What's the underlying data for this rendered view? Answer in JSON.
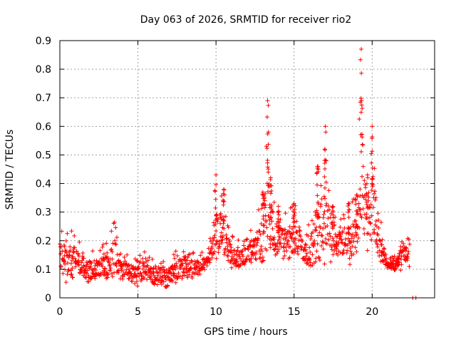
{
  "chart_data": {
    "type": "scatter",
    "title": "Day 063 of 2026, SRMTID for receiver rio2",
    "xlabel": "GPS time / hours",
    "ylabel": "SRMTID / TECUs",
    "xlim": [
      0,
      24
    ],
    "ylim": [
      0,
      0.9
    ],
    "xticks": [
      0,
      5,
      10,
      15,
      20
    ],
    "yticks": [
      0,
      0.1,
      0.2,
      0.3,
      0.4,
      0.5,
      0.6,
      0.7,
      0.8,
      0.9
    ],
    "grid": true,
    "marker": "+",
    "series_color": "#ff0000",
    "envelope": [
      [
        0.0,
        0.06,
        0.28
      ],
      [
        0.5,
        0.05,
        0.25
      ],
      [
        1.0,
        0.07,
        0.23
      ],
      [
        1.5,
        0.06,
        0.18
      ],
      [
        2.0,
        0.05,
        0.17
      ],
      [
        2.5,
        0.06,
        0.18
      ],
      [
        3.0,
        0.05,
        0.2
      ],
      [
        3.5,
        0.06,
        0.28
      ],
      [
        4.0,
        0.06,
        0.16
      ],
      [
        4.5,
        0.05,
        0.15
      ],
      [
        5.0,
        0.04,
        0.14
      ],
      [
        5.5,
        0.05,
        0.19
      ],
      [
        6.0,
        0.04,
        0.14
      ],
      [
        6.5,
        0.03,
        0.15
      ],
      [
        7.0,
        0.04,
        0.14
      ],
      [
        7.5,
        0.05,
        0.17
      ],
      [
        8.0,
        0.05,
        0.2
      ],
      [
        8.5,
        0.07,
        0.16
      ],
      [
        9.0,
        0.08,
        0.16
      ],
      [
        9.5,
        0.09,
        0.17
      ],
      [
        10.0,
        0.1,
        0.43
      ],
      [
        10.5,
        0.11,
        0.38
      ],
      [
        11.0,
        0.09,
        0.22
      ],
      [
        11.5,
        0.1,
        0.2
      ],
      [
        12.0,
        0.12,
        0.21
      ],
      [
        12.5,
        0.12,
        0.28
      ],
      [
        13.0,
        0.08,
        0.37
      ],
      [
        13.3,
        0.1,
        0.69
      ],
      [
        13.5,
        0.14,
        0.42
      ],
      [
        14.0,
        0.13,
        0.32
      ],
      [
        14.5,
        0.12,
        0.3
      ],
      [
        15.0,
        0.13,
        0.33
      ],
      [
        15.5,
        0.12,
        0.3
      ],
      [
        16.0,
        0.08,
        0.28
      ],
      [
        16.5,
        0.09,
        0.46
      ],
      [
        17.0,
        0.1,
        0.6
      ],
      [
        17.5,
        0.13,
        0.32
      ],
      [
        18.0,
        0.14,
        0.28
      ],
      [
        18.5,
        0.11,
        0.33
      ],
      [
        19.0,
        0.12,
        0.36
      ],
      [
        19.3,
        0.18,
        0.87
      ],
      [
        19.7,
        0.12,
        0.43
      ],
      [
        20.0,
        0.15,
        0.6
      ],
      [
        20.5,
        0.12,
        0.3
      ],
      [
        21.0,
        0.09,
        0.14
      ],
      [
        21.5,
        0.09,
        0.15
      ],
      [
        22.0,
        0.1,
        0.24
      ],
      [
        22.4,
        0.11,
        0.23
      ]
    ],
    "isolated_points": [
      [
        22.6,
        0.0
      ],
      [
        22.8,
        0.0
      ]
    ]
  }
}
